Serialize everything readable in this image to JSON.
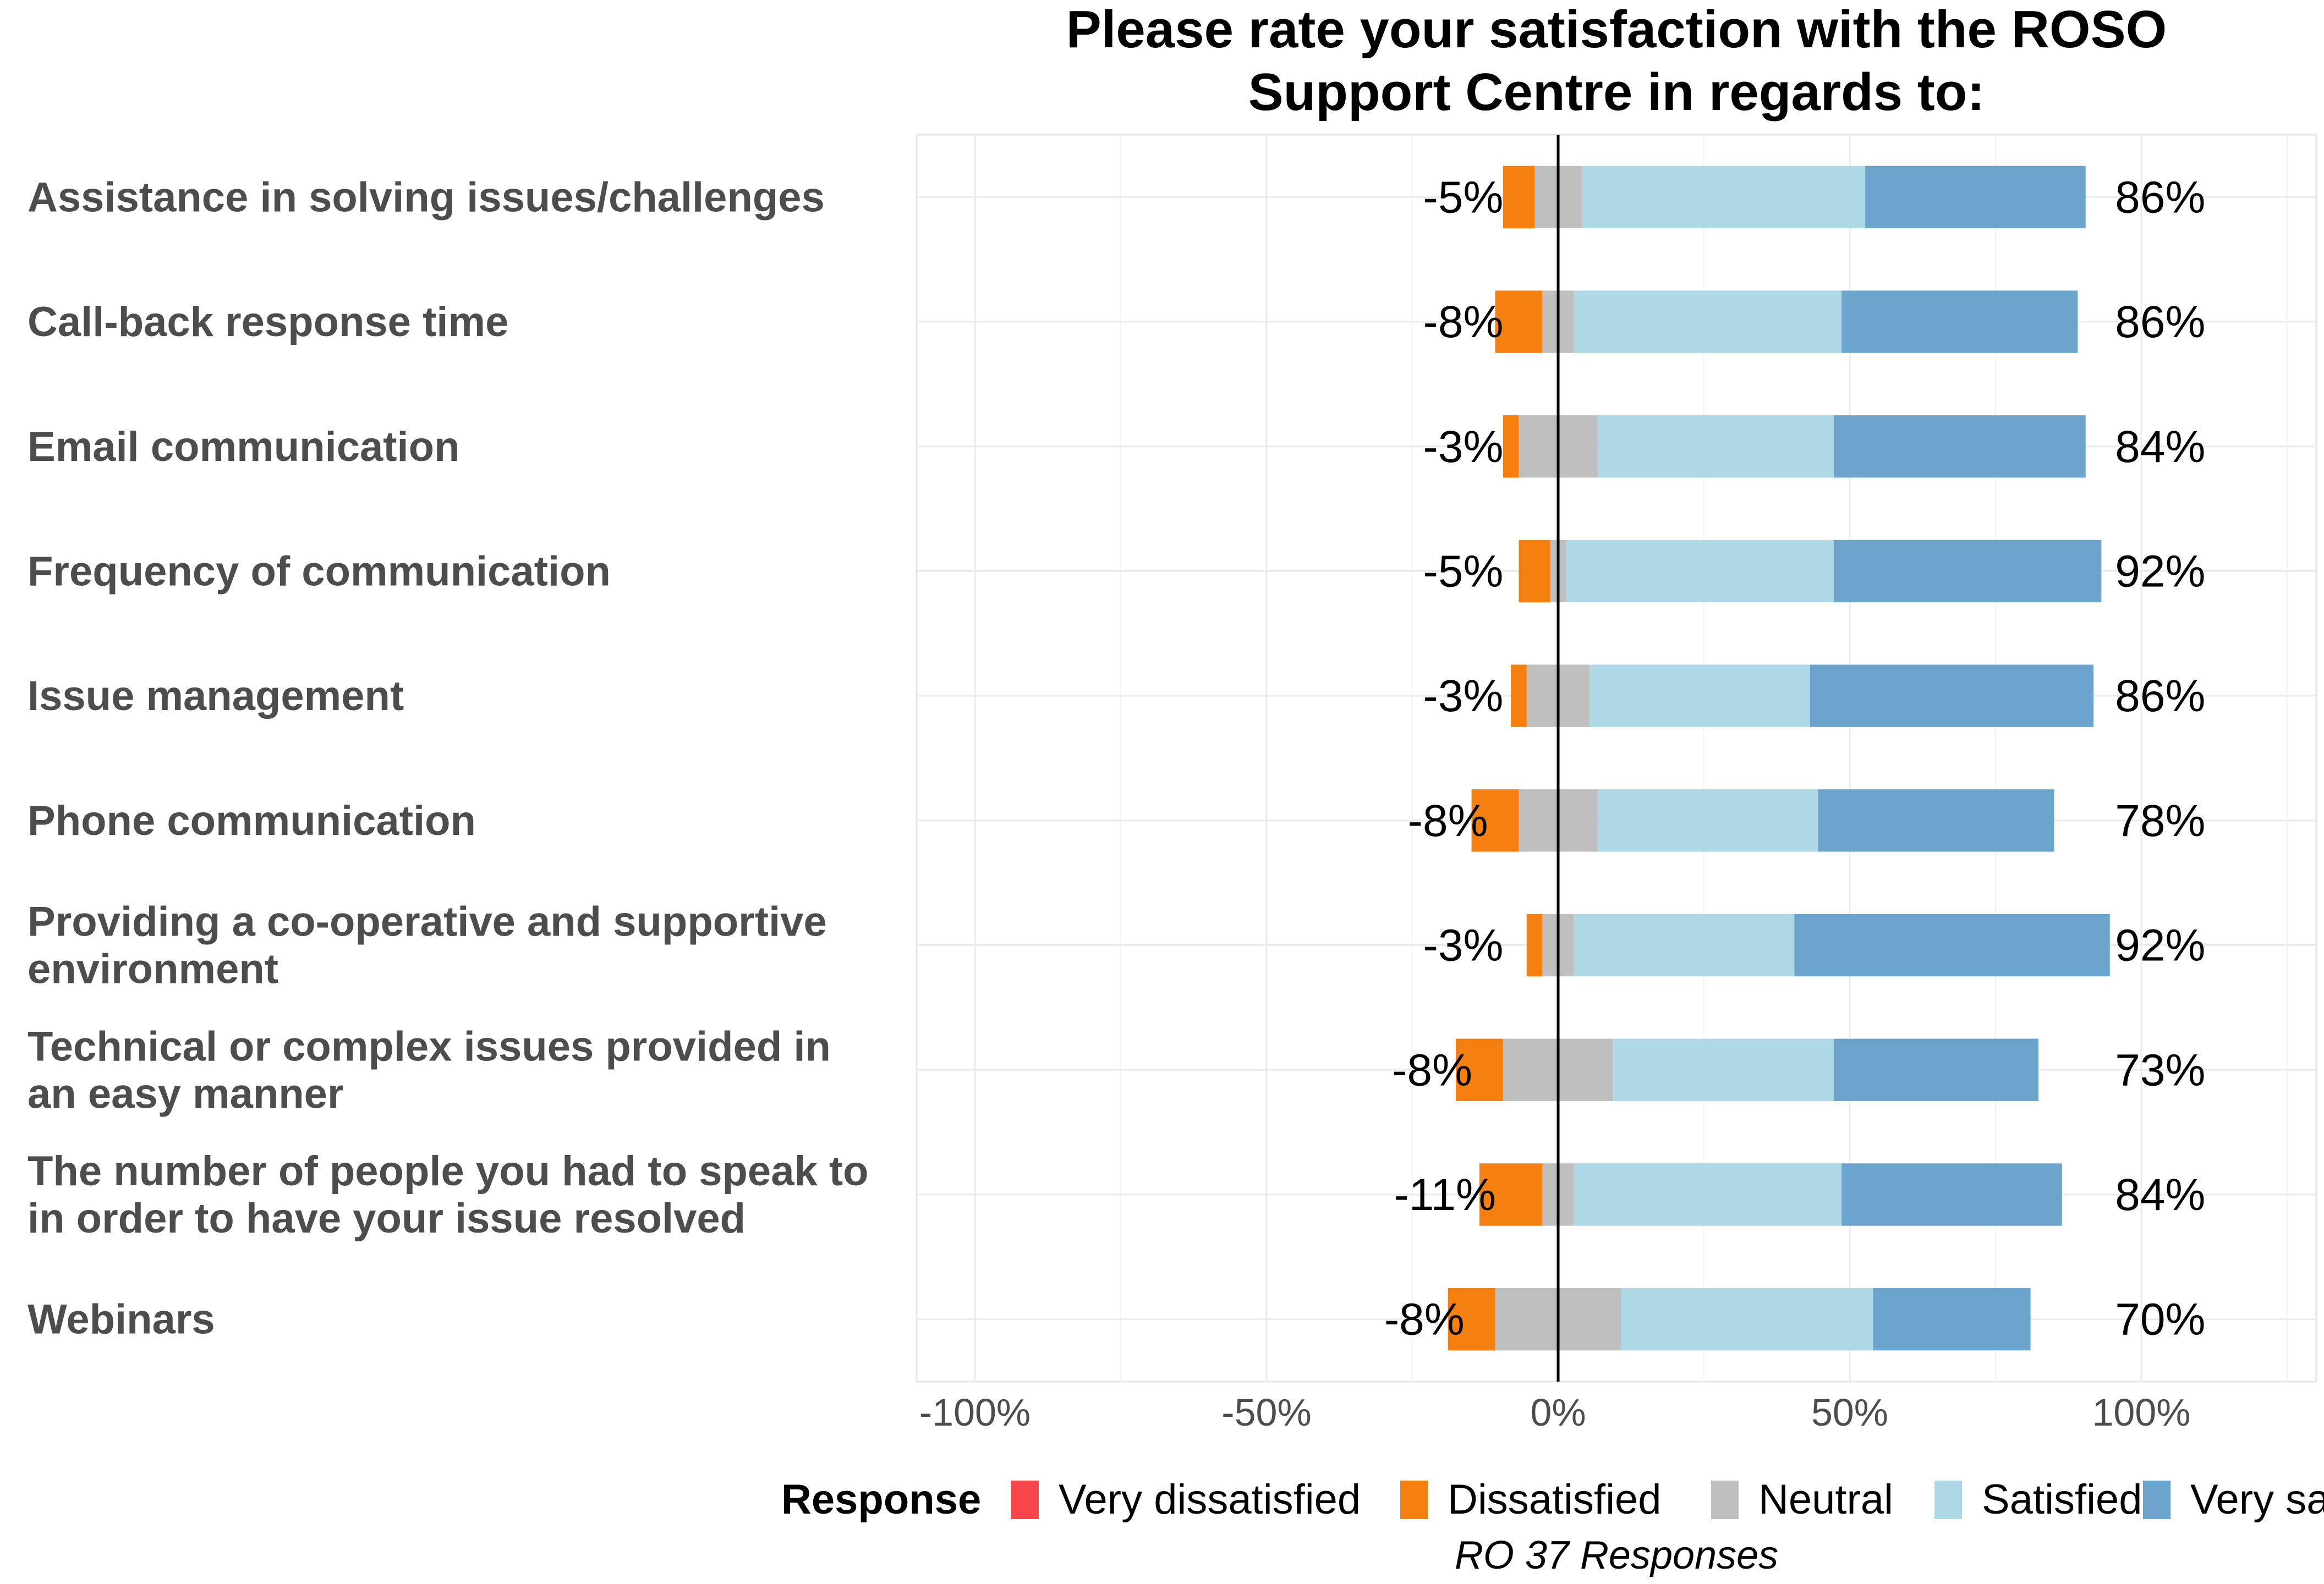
{
  "chart_data": {
    "type": "bar",
    "orientation": "horizontal",
    "stacked": "diverging",
    "title": "Please rate your satisfaction with the ROSO Support Centre in regards to:",
    "title_lines": [
      "Please rate your satisfaction with the ROSO",
      "Support Centre in regards to:"
    ],
    "caption": "RO 37 Responses",
    "xlim": [
      -1.1,
      1.3
    ],
    "x_ticks": [
      -1,
      -0.5,
      0,
      0.5,
      1
    ],
    "x_tick_labels": [
      "-100%",
      "-50%",
      "0%",
      "50%",
      "100%"
    ],
    "grid": true,
    "legend_position": "bottom",
    "legend_title": "Response",
    "series": [
      {
        "name": "Very dissatisfied",
        "color": "#F8444B"
      },
      {
        "name": "Dissatisfied",
        "color": "#F57F0F"
      },
      {
        "name": "Neutral",
        "color": "#BFBFBF"
      },
      {
        "name": "Satisfied",
        "color": "#ADD8E6"
      },
      {
        "name": "Very satisfied",
        "color": "#6BA5CD"
      }
    ],
    "categories": [
      {
        "label": [
          "Assistance in solving issues/challenges"
        ],
        "very_dissatisfied": 0.0,
        "dissatisfied": 0.054,
        "neutral": 0.081,
        "satisfied": 0.486,
        "very_satisfied": 0.378,
        "neg_label": "-5%",
        "pos_label": "86%"
      },
      {
        "label": [
          "Call-back response time"
        ],
        "very_dissatisfied": 0.0,
        "dissatisfied": 0.081,
        "neutral": 0.054,
        "satisfied": 0.459,
        "very_satisfied": 0.405,
        "neg_label": "-8%",
        "pos_label": "86%"
      },
      {
        "label": [
          "Email communication"
        ],
        "very_dissatisfied": 0.0,
        "dissatisfied": 0.027,
        "neutral": 0.135,
        "satisfied": 0.405,
        "very_satisfied": 0.432,
        "neg_label": "-3%",
        "pos_label": "84%"
      },
      {
        "label": [
          "Frequency of communication"
        ],
        "very_dissatisfied": 0.0,
        "dissatisfied": 0.054,
        "neutral": 0.027,
        "satisfied": 0.459,
        "very_satisfied": 0.459,
        "neg_label": "-5%",
        "pos_label": "92%"
      },
      {
        "label": [
          "Issue management"
        ],
        "very_dissatisfied": 0.0,
        "dissatisfied": 0.027,
        "neutral": 0.108,
        "satisfied": 0.378,
        "very_satisfied": 0.486,
        "neg_label": "-3%",
        "pos_label": "86%"
      },
      {
        "label": [
          "Phone communication"
        ],
        "very_dissatisfied": 0.0,
        "dissatisfied": 0.081,
        "neutral": 0.135,
        "satisfied": 0.378,
        "very_satisfied": 0.405,
        "neg_label": "-8%",
        "pos_label": "78%"
      },
      {
        "label": [
          "Providing a co-operative and supportive",
          "environment"
        ],
        "very_dissatisfied": 0.0,
        "dissatisfied": 0.027,
        "neutral": 0.054,
        "satisfied": 0.378,
        "very_satisfied": 0.541,
        "neg_label": "-3%",
        "pos_label": "92%"
      },
      {
        "label": [
          "Technical or complex issues provided in",
          "an easy manner"
        ],
        "very_dissatisfied": 0.0,
        "dissatisfied": 0.081,
        "neutral": 0.189,
        "satisfied": 0.378,
        "very_satisfied": 0.351,
        "neg_label": "-8%",
        "pos_label": "73%"
      },
      {
        "label": [
          "The number of people you had to speak to",
          "in order to have your issue resolved"
        ],
        "very_dissatisfied": 0.0,
        "dissatisfied": 0.108,
        "neutral": 0.054,
        "satisfied": 0.459,
        "very_satisfied": 0.378,
        "neg_label": "-11%",
        "pos_label": "84%"
      },
      {
        "label": [
          "Webinars"
        ],
        "very_dissatisfied": 0.0,
        "dissatisfied": 0.081,
        "neutral": 0.216,
        "satisfied": 0.432,
        "very_satisfied": 0.27,
        "neg_label": "-8%",
        "pos_label": "70%"
      }
    ]
  }
}
